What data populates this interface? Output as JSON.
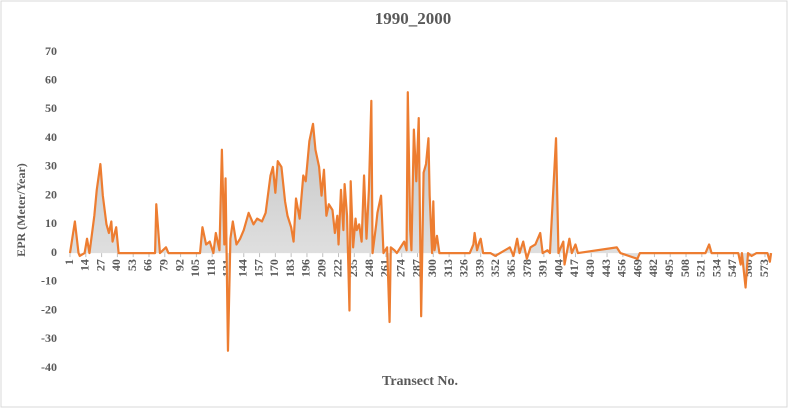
{
  "chart_data": {
    "type": "line",
    "title": "1990_2000",
    "y_label": "EPR (Meter/Year)",
    "x_label": "Transect No.",
    "color": "#ed7d31",
    "area": true,
    "x": [
      1,
      5,
      8,
      9,
      13,
      15,
      17,
      21,
      23,
      26,
      28,
      31,
      33,
      35,
      36,
      39,
      41,
      71,
      72,
      75,
      80,
      82,
      108,
      110,
      113,
      116,
      119,
      121,
      124,
      126,
      128,
      129,
      131,
      133,
      135,
      138,
      141,
      144,
      148,
      152,
      155,
      159,
      162,
      166,
      168,
      170,
      172,
      175,
      178,
      180,
      183,
      185,
      187,
      190,
      193,
      195,
      198,
      201,
      203,
      206,
      208,
      210,
      212,
      214,
      217,
      219,
      221,
      222,
      224,
      226,
      227,
      229,
      231,
      232,
      234,
      236,
      237,
      239,
      241,
      243,
      245,
      247,
      249,
      250,
      253,
      254,
      257,
      259,
      262,
      264,
      265,
      268,
      270,
      273,
      276,
      278,
      279,
      281,
      282,
      284,
      286,
      288,
      290,
      292,
      294,
      296,
      297,
      299,
      300,
      301,
      303,
      305,
      330,
      333,
      334,
      336,
      338,
      339,
      341,
      347,
      351,
      355,
      363,
      366,
      369,
      371,
      374,
      377,
      380,
      384,
      388,
      390,
      394,
      396,
      401,
      403,
      407,
      408,
      412,
      414,
      417,
      419,
      451,
      454,
      468,
      470,
      524,
      527,
      529,
      551,
      553,
      554,
      557,
      559,
      562,
      566,
      575,
      577,
      578
    ],
    "values": [
      0,
      11,
      0,
      -1,
      0,
      5,
      0,
      13,
      22,
      31,
      20,
      10,
      7,
      11,
      4,
      9,
      0,
      0,
      17,
      0,
      2,
      0,
      0,
      9,
      3,
      4,
      0,
      7,
      1,
      36,
      3,
      26,
      -34,
      5,
      11,
      3,
      5,
      8,
      14,
      10,
      12,
      11,
      14,
      27,
      30,
      21,
      32,
      30,
      18,
      13,
      9,
      4,
      19,
      12,
      27,
      25,
      39,
      45,
      36,
      30,
      20,
      29,
      13,
      17,
      15,
      7,
      13,
      3,
      22,
      8,
      24,
      13,
      -20,
      25,
      2,
      12,
      8,
      10,
      4,
      27,
      5,
      22,
      53,
      0,
      10,
      14,
      20,
      0,
      2,
      -24,
      2,
      1,
      0,
      2,
      4,
      1,
      56,
      8,
      1,
      43,
      25,
      47,
      -22,
      28,
      31,
      40,
      20,
      0,
      18,
      1,
      6,
      0,
      0,
      3,
      7,
      1,
      4,
      5,
      0,
      0,
      -1,
      0,
      2,
      -1,
      5,
      0,
      4,
      -2,
      2,
      3,
      7,
      0,
      1,
      0,
      40,
      0,
      4,
      -4,
      5,
      0,
      3,
      0,
      2,
      0,
      -2,
      0,
      0,
      3,
      0,
      0,
      -4,
      0,
      -12,
      0,
      -1,
      0,
      0,
      -3,
      0
    ],
    "xlim": [
      0,
      579
    ],
    "ylim": [
      -40,
      70
    ],
    "xticks": [
      1,
      14,
      27,
      40,
      53,
      66,
      79,
      92,
      105,
      118,
      131,
      144,
      157,
      170,
      183,
      196,
      209,
      222,
      235,
      248,
      261,
      274,
      287,
      300,
      313,
      326,
      339,
      352,
      365,
      378,
      391,
      404,
      417,
      430,
      443,
      456,
      469,
      482,
      495,
      508,
      521,
      534,
      547,
      560,
      573
    ],
    "yticks": [
      -40,
      -30,
      -20,
      -10,
      0,
      10,
      20,
      30,
      40,
      50,
      60,
      70
    ]
  }
}
